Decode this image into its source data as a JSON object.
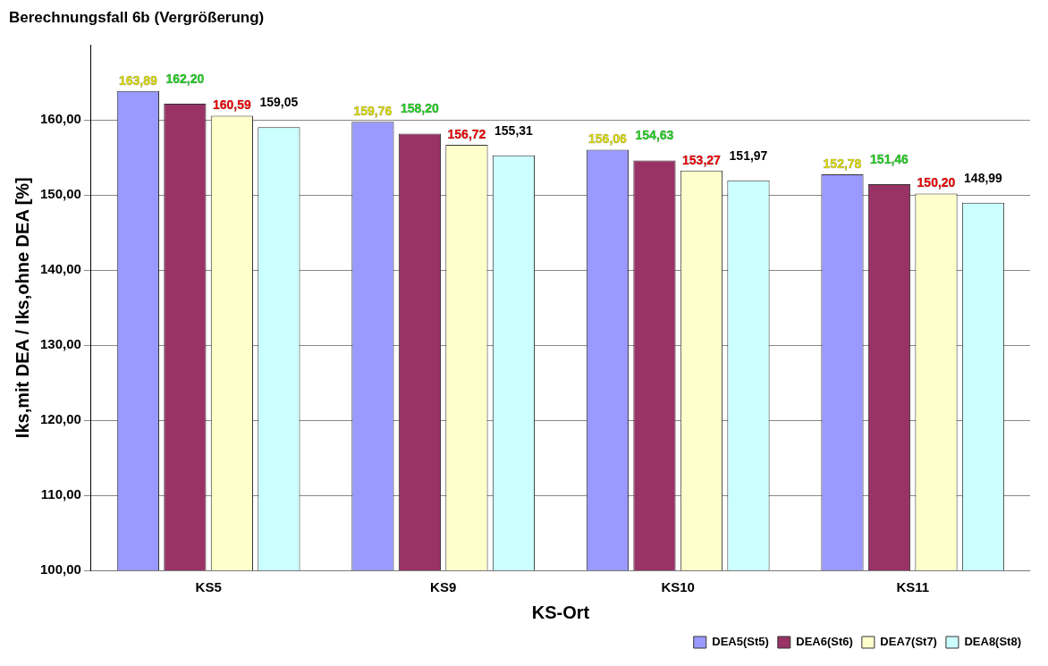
{
  "chart_data": {
    "type": "bar",
    "title": "Berechnungsfall 6b (Vergrößerung)",
    "xlabel": "KS-Ort",
    "ylabel": "Iks,mit DEA / Iks,ohne DEA [%]",
    "categories": [
      "KS5",
      "KS9",
      "KS10",
      "KS11"
    ],
    "series": [
      {
        "name": "DEA5(St5)",
        "color": "#9999ff",
        "values": [
          163.89,
          159.76,
          156.06,
          152.78
        ],
        "value_labels": [
          "163,89",
          "159,76",
          "156,06",
          "152,78"
        ]
      },
      {
        "name": "DEA6(St6)",
        "color": "#993366",
        "values": [
          162.2,
          158.2,
          154.63,
          151.46
        ],
        "value_labels": [
          "162,20",
          "158,20",
          "154,63",
          "151,46"
        ]
      },
      {
        "name": "DEA7(St7)",
        "color": "#ffffcc",
        "values": [
          160.59,
          156.72,
          153.27,
          150.2
        ],
        "value_labels": [
          "160,59",
          "156,72",
          "153,27",
          "150,20"
        ]
      },
      {
        "name": "DEA8(St8)",
        "color": "#ccffff",
        "values": [
          159.05,
          155.31,
          151.97,
          148.99
        ],
        "value_labels": [
          "159,05",
          "155,31",
          "151,97",
          "148,99"
        ]
      }
    ],
    "ylim": [
      100,
      170
    ],
    "yticks": [
      {
        "value": 100,
        "label": "100,00"
      },
      {
        "value": 110,
        "label": "110,00"
      },
      {
        "value": 120,
        "label": "120,00"
      },
      {
        "value": 130,
        "label": "130,00"
      },
      {
        "value": 140,
        "label": "140,00"
      },
      {
        "value": 150,
        "label": "150,00"
      },
      {
        "value": 160,
        "label": "160,00"
      }
    ],
    "grid": "y",
    "legend": "bottom right"
  }
}
